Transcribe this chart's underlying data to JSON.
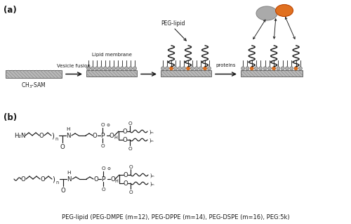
{
  "fig_width": 5.0,
  "fig_height": 3.19,
  "dpi": 100,
  "bg_color": "#ffffff",
  "label_a": "(a)",
  "label_b": "(b)",
  "caption": "PEG-lipid (PEG-DMPE (m=12), PEG-DPPE (m=14), PEG-DSPE (m=16), PEG:5k)",
  "ch3sam_label": "CH$_3$-SAM",
  "vesicle_label": "Vesicle fusion",
  "lipid_label": "Lipid membrane",
  "proteins_label": "proteins",
  "peg_lipid_label": "PEG-lipid",
  "orange": "#e07020",
  "dark": "#1a1a1a",
  "gray_head": "#b0b0b0",
  "substrate_face": "#b8b8b8",
  "substrate_edge": "#555555",
  "hatch_color": "#888888"
}
